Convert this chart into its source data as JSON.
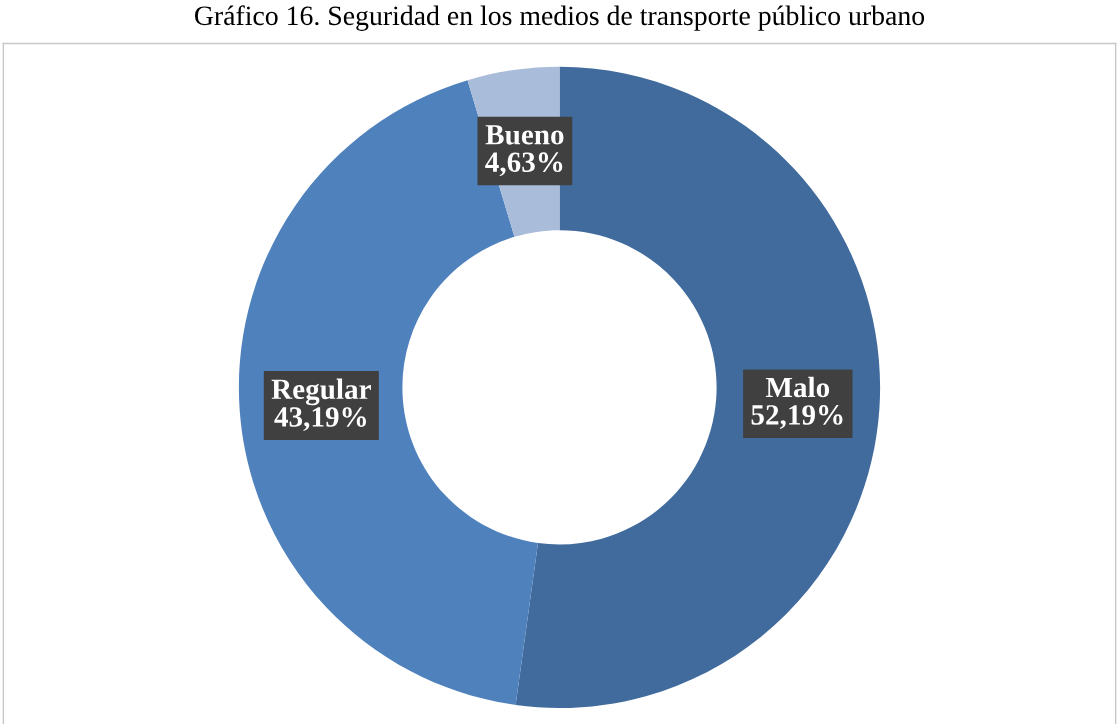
{
  "chart_data": {
    "type": "donut",
    "title": "Gráfico 16. Seguridad en los medios de transporte público urbano",
    "categories": [
      "Malo",
      "Regular",
      "Bueno"
    ],
    "values": [
      52.19,
      43.19,
      4.63
    ],
    "colors": [
      "#416b9d",
      "#4f81bd",
      "#a9bcd9"
    ],
    "value_labels": [
      "52,19%",
      "43,19%",
      "4,63%"
    ]
  }
}
